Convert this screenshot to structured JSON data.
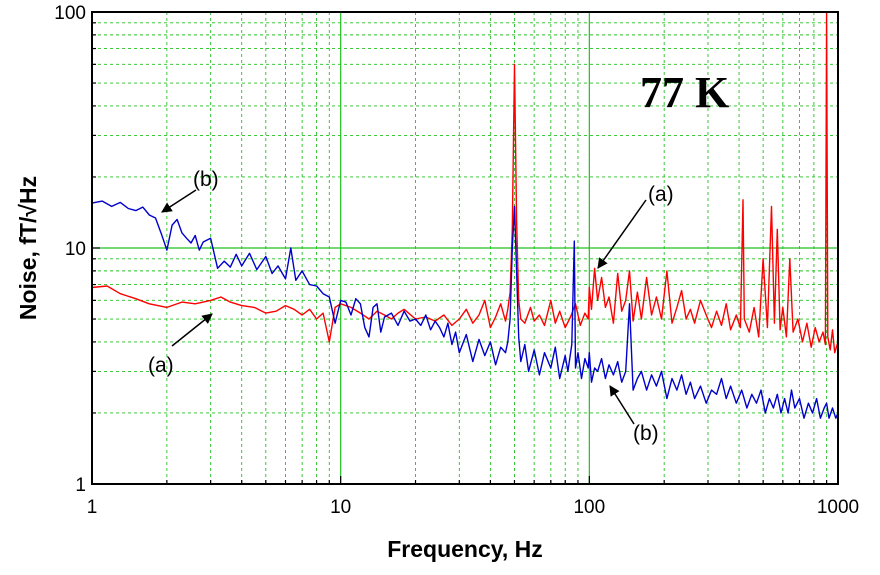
{
  "chart_data": {
    "type": "line",
    "title": "",
    "xlabel": "Frequency, Hz",
    "ylabel": "Noise,  fT/√Hz",
    "xscale": "log",
    "yscale": "log",
    "xlim": [
      1,
      1000
    ],
    "ylim": [
      1,
      100
    ],
    "grid": true,
    "x_ticks": [
      "1",
      "10",
      "100",
      "1000"
    ],
    "y_ticks": [
      "1",
      "10",
      "100"
    ],
    "series": [
      {
        "color": "#ff0000",
        "points": [
          [
            1,
            6.8
          ],
          [
            1.15,
            6.9
          ],
          [
            1.3,
            6.4
          ],
          [
            1.5,
            6.1
          ],
          [
            1.7,
            5.8
          ],
          [
            2.0,
            5.6
          ],
          [
            2.3,
            5.9
          ],
          [
            2.6,
            5.8
          ],
          [
            3.0,
            6.0
          ],
          [
            3.3,
            6.2
          ],
          [
            3.6,
            5.9
          ],
          [
            4.0,
            5.7
          ],
          [
            4.5,
            5.6
          ],
          [
            5.0,
            5.3
          ],
          [
            5.5,
            5.4
          ],
          [
            6.0,
            5.7
          ],
          [
            6.5,
            5.5
          ],
          [
            7.0,
            5.2
          ],
          [
            7.5,
            5.5
          ],
          [
            8.0,
            5.0
          ],
          [
            8.5,
            5.3
          ],
          [
            9.0,
            4.0
          ],
          [
            9.5,
            5.6
          ],
          [
            10,
            5.8
          ],
          [
            11,
            5.6
          ],
          [
            12,
            5.3
          ],
          [
            13,
            5.0
          ],
          [
            14,
            5.4
          ],
          [
            15,
            5.2
          ],
          [
            16,
            5.0
          ],
          [
            17,
            5.3
          ],
          [
            18,
            5.5
          ],
          [
            20,
            5.0
          ],
          [
            22,
            5.1
          ],
          [
            24,
            4.9
          ],
          [
            26,
            5.2
          ],
          [
            28,
            4.7
          ],
          [
            30,
            5.0
          ],
          [
            32,
            5.5
          ],
          [
            34,
            4.8
          ],
          [
            36,
            5.2
          ],
          [
            38,
            6.0
          ],
          [
            40,
            4.6
          ],
          [
            42,
            5.1
          ],
          [
            44,
            5.8
          ],
          [
            46,
            4.9
          ],
          [
            47,
            5.5
          ],
          [
            48,
            6.5
          ],
          [
            49,
            12
          ],
          [
            50,
            60
          ],
          [
            51,
            13
          ],
          [
            52,
            6.0
          ],
          [
            53,
            5.0
          ],
          [
            55,
            4.8
          ],
          [
            58,
            5.6
          ],
          [
            60,
            4.9
          ],
          [
            63,
            5.2
          ],
          [
            66,
            4.7
          ],
          [
            70,
            6.0
          ],
          [
            73,
            4.8
          ],
          [
            76,
            5.4
          ],
          [
            80,
            4.6
          ],
          [
            84,
            5.1
          ],
          [
            88,
            5.8
          ],
          [
            92,
            4.7
          ],
          [
            96,
            5.3
          ],
          [
            99,
            5.0
          ],
          [
            100,
            6.8
          ],
          [
            102,
            5.5
          ],
          [
            105,
            8.2
          ],
          [
            108,
            6.0
          ],
          [
            112,
            7.5
          ],
          [
            116,
            5.6
          ],
          [
            120,
            6.2
          ],
          [
            125,
            4.8
          ],
          [
            130,
            7.8
          ],
          [
            135,
            5.4
          ],
          [
            140,
            6.0
          ],
          [
            145,
            8.0
          ],
          [
            150,
            4.9
          ],
          [
            156,
            6.5
          ],
          [
            162,
            5.0
          ],
          [
            170,
            7.5
          ],
          [
            178,
            5.2
          ],
          [
            186,
            6.2
          ],
          [
            195,
            5.0
          ],
          [
            205,
            8.0
          ],
          [
            215,
            4.8
          ],
          [
            225,
            5.6
          ],
          [
            235,
            6.6
          ],
          [
            245,
            5.0
          ],
          [
            255,
            5.5
          ],
          [
            265,
            4.8
          ],
          [
            280,
            6.0
          ],
          [
            295,
            5.2
          ],
          [
            310,
            4.6
          ],
          [
            325,
            5.4
          ],
          [
            340,
            4.7
          ],
          [
            355,
            5.8
          ],
          [
            370,
            4.5
          ],
          [
            390,
            5.2
          ],
          [
            405,
            4.6
          ],
          [
            415,
            16
          ],
          [
            420,
            5.0
          ],
          [
            440,
            4.4
          ],
          [
            460,
            5.6
          ],
          [
            480,
            4.2
          ],
          [
            500,
            9.0
          ],
          [
            520,
            4.6
          ],
          [
            540,
            15
          ],
          [
            555,
            4.8
          ],
          [
            570,
            12
          ],
          [
            585,
            4.5
          ],
          [
            600,
            5.6
          ],
          [
            620,
            4.2
          ],
          [
            640,
            9.0
          ],
          [
            660,
            4.4
          ],
          [
            690,
            5.0
          ],
          [
            720,
            4.0
          ],
          [
            750,
            4.8
          ],
          [
            780,
            3.8
          ],
          [
            810,
            4.6
          ],
          [
            840,
            4.0
          ],
          [
            870,
            4.4
          ],
          [
            890,
            3.9
          ],
          [
            900,
            100
          ],
          [
            910,
            4.2
          ],
          [
            930,
            3.7
          ],
          [
            950,
            4.5
          ],
          [
            970,
            3.6
          ],
          [
            1000,
            4.0
          ]
        ]
      },
      {
        "color": "#0000cc",
        "points": [
          [
            1,
            15.5
          ],
          [
            1.1,
            15.8
          ],
          [
            1.2,
            15.0
          ],
          [
            1.3,
            15.6
          ],
          [
            1.4,
            14.7
          ],
          [
            1.5,
            14.4
          ],
          [
            1.6,
            14.9
          ],
          [
            1.7,
            13.8
          ],
          [
            1.8,
            13.4
          ],
          [
            1.9,
            11.5
          ],
          [
            2.0,
            9.8
          ],
          [
            2.1,
            12.5
          ],
          [
            2.2,
            13.2
          ],
          [
            2.3,
            11.6
          ],
          [
            2.4,
            11.0
          ],
          [
            2.5,
            10.5
          ],
          [
            2.6,
            11.3
          ],
          [
            2.7,
            9.8
          ],
          [
            2.8,
            10.6
          ],
          [
            3.0,
            11.0
          ],
          [
            3.2,
            8.2
          ],
          [
            3.4,
            8.8
          ],
          [
            3.6,
            8.3
          ],
          [
            3.8,
            9.4
          ],
          [
            4.0,
            8.4
          ],
          [
            4.3,
            9.5
          ],
          [
            4.6,
            8.1
          ],
          [
            5.0,
            9.2
          ],
          [
            5.3,
            7.8
          ],
          [
            5.6,
            8.4
          ],
          [
            6.0,
            7.4
          ],
          [
            6.3,
            10.0
          ],
          [
            6.6,
            7.3
          ],
          [
            7.0,
            8.0
          ],
          [
            7.5,
            7.0
          ],
          [
            8.0,
            6.9
          ],
          [
            8.5,
            6.4
          ],
          [
            9.0,
            6.2
          ],
          [
            9.5,
            4.8
          ],
          [
            10,
            6.0
          ],
          [
            10.5,
            5.9
          ],
          [
            11,
            5.2
          ],
          [
            11.5,
            6.1
          ],
          [
            12,
            5.8
          ],
          [
            12.5,
            4.6
          ],
          [
            13,
            4.2
          ],
          [
            13.5,
            5.6
          ],
          [
            14,
            5.8
          ],
          [
            14.5,
            4.4
          ],
          [
            15,
            5.1
          ],
          [
            16,
            5.3
          ],
          [
            17,
            4.7
          ],
          [
            18,
            5.4
          ],
          [
            19,
            4.9
          ],
          [
            20,
            5.0
          ],
          [
            21,
            4.7
          ],
          [
            22,
            5.2
          ],
          [
            23,
            4.5
          ],
          [
            24,
            4.9
          ],
          [
            25,
            4.6
          ],
          [
            26,
            4.2
          ],
          [
            27,
            4.8
          ],
          [
            28,
            3.9
          ],
          [
            29,
            4.4
          ],
          [
            30,
            3.6
          ],
          [
            32,
            4.3
          ],
          [
            34,
            3.3
          ],
          [
            36,
            4.1
          ],
          [
            38,
            3.5
          ],
          [
            40,
            4.0
          ],
          [
            42,
            3.2
          ],
          [
            44,
            3.8
          ],
          [
            46,
            3.6
          ],
          [
            47,
            4.0
          ],
          [
            48,
            5.0
          ],
          [
            49,
            10
          ],
          [
            50,
            15
          ],
          [
            51,
            8.0
          ],
          [
            52,
            4.2
          ],
          [
            53,
            3.3
          ],
          [
            55,
            3.9
          ],
          [
            57,
            3.0
          ],
          [
            60,
            3.7
          ],
          [
            63,
            2.9
          ],
          [
            66,
            3.6
          ],
          [
            70,
            3.1
          ],
          [
            73,
            3.8
          ],
          [
            76,
            2.8
          ],
          [
            80,
            3.5
          ],
          [
            82,
            3.0
          ],
          [
            85,
            3.9
          ],
          [
            87,
            10.7
          ],
          [
            88,
            3.1
          ],
          [
            90,
            3.6
          ],
          [
            93,
            2.8
          ],
          [
            96,
            3.4
          ],
          [
            99,
            3.1
          ],
          [
            100,
            3.6
          ],
          [
            102,
            2.7
          ],
          [
            105,
            3.1
          ],
          [
            108,
            3.0
          ],
          [
            112,
            3.4
          ],
          [
            116,
            2.8
          ],
          [
            120,
            3.2
          ],
          [
            125,
            2.9
          ],
          [
            130,
            3.3
          ],
          [
            135,
            2.7
          ],
          [
            140,
            3.0
          ],
          [
            145,
            5.8
          ],
          [
            150,
            2.5
          ],
          [
            156,
            2.8
          ],
          [
            162,
            3.0
          ],
          [
            170,
            2.5
          ],
          [
            178,
            2.9
          ],
          [
            186,
            2.6
          ],
          [
            195,
            3.0
          ],
          [
            205,
            2.3
          ],
          [
            215,
            2.8
          ],
          [
            225,
            2.5
          ],
          [
            235,
            2.9
          ],
          [
            245,
            2.4
          ],
          [
            255,
            2.7
          ],
          [
            265,
            2.3
          ],
          [
            280,
            2.6
          ],
          [
            295,
            2.2
          ],
          [
            310,
            2.5
          ],
          [
            325,
            2.4
          ],
          [
            340,
            2.8
          ],
          [
            355,
            2.3
          ],
          [
            370,
            2.6
          ],
          [
            390,
            2.2
          ],
          [
            410,
            2.5
          ],
          [
            430,
            2.1
          ],
          [
            450,
            2.4
          ],
          [
            470,
            2.2
          ],
          [
            490,
            2.5
          ],
          [
            510,
            2.0
          ],
          [
            530,
            2.3
          ],
          [
            550,
            2.1
          ],
          [
            570,
            2.4
          ],
          [
            590,
            2.0
          ],
          [
            610,
            2.3
          ],
          [
            630,
            2.0
          ],
          [
            650,
            2.5
          ],
          [
            670,
            2.1
          ],
          [
            700,
            2.3
          ],
          [
            730,
            1.9
          ],
          [
            760,
            2.2
          ],
          [
            790,
            2.0
          ],
          [
            820,
            2.3
          ],
          [
            850,
            1.9
          ],
          [
            880,
            2.1
          ],
          [
            900,
            2.2
          ],
          [
            920,
            1.9
          ],
          [
            950,
            2.1
          ],
          [
            980,
            1.9
          ],
          [
            1000,
            2.0
          ]
        ]
      }
    ],
    "annotations": [
      {
        "text": "77 K"
      },
      {
        "text": "(b)",
        "x": 1.9,
        "y": 13.5
      },
      {
        "text": "(a)",
        "x": 3.1,
        "y": 6.1
      },
      {
        "text": "(a)",
        "x": 100,
        "y": 8.2
      },
      {
        "text": "(b)",
        "x": 110,
        "y": 3.2
      }
    ]
  }
}
